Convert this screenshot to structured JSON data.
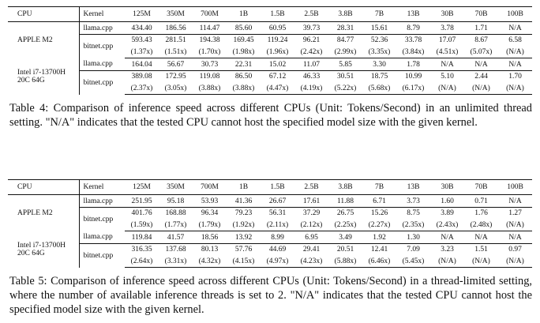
{
  "tables": [
    {
      "headers": [
        "CPU",
        "Kernel",
        "125M",
        "350M",
        "700M",
        "1B",
        "1.5B",
        "2.5B",
        "3.8B",
        "7B",
        "13B",
        "30B",
        "70B",
        "100B"
      ],
      "cpus": [
        {
          "name_lines": [
            "APPLE M2"
          ],
          "llama": [
            "434.40",
            "186.56",
            "114.47",
            "85.60",
            "60.95",
            "39.73",
            "28.31",
            "15.61",
            "8.79",
            "3.78",
            "1.71",
            "N/A"
          ],
          "bitnet": [
            "593.43",
            "281.51",
            "194.38",
            "169.45",
            "119.24",
            "96.21",
            "84.77",
            "52.36",
            "33.78",
            "17.07",
            "8.67",
            "6.58"
          ],
          "speedup": [
            "(1.37x)",
            "(1.51x)",
            "(1.70x)",
            "(1.98x)",
            "(1.96x)",
            "(2.42x)",
            "(2.99x)",
            "(3.35x)",
            "(3.84x)",
            "(4.51x)",
            "(5.07x)",
            "(N/A)"
          ]
        },
        {
          "name_lines": [
            "Intel i7-13700H",
            "20C 64G"
          ],
          "llama": [
            "164.04",
            "56.67",
            "30.73",
            "22.31",
            "15.02",
            "11.07",
            "5.85",
            "3.30",
            "1.78",
            "N/A",
            "N/A",
            "N/A"
          ],
          "bitnet": [
            "389.08",
            "172.95",
            "119.08",
            "86.50",
            "67.12",
            "46.33",
            "30.51",
            "18.75",
            "10.99",
            "5.10",
            "2.44",
            "1.70"
          ],
          "speedup": [
            "(2.37x)",
            "(3.05x)",
            "(3.88x)",
            "(3.88x)",
            "(4.47x)",
            "(4.19x)",
            "(5.22x)",
            "(5.68x)",
            "(6.17x)",
            "(N/A)",
            "(N/A)",
            "(N/A)"
          ]
        }
      ],
      "caption": "Table 4: Comparison of inference speed across different CPUs (Unit: Tokens/Second) in an unlimited thread setting. \"N/A\" indicates that the tested CPU cannot host the specified model size with the given kernel."
    },
    {
      "headers": [
        "CPU",
        "Kernel",
        "125M",
        "350M",
        "700M",
        "1B",
        "1.5B",
        "2.5B",
        "3.8B",
        "7B",
        "13B",
        "30B",
        "70B",
        "100B"
      ],
      "cpus": [
        {
          "name_lines": [
            "APPLE M2"
          ],
          "llama": [
            "251.95",
            "95.18",
            "53.93",
            "41.36",
            "26.67",
            "17.61",
            "11.88",
            "6.71",
            "3.73",
            "1.60",
            "0.71",
            "N/A"
          ],
          "bitnet": [
            "401.76",
            "168.88",
            "96.34",
            "79.23",
            "56.31",
            "37.29",
            "26.75",
            "15.26",
            "8.75",
            "3.89",
            "1.76",
            "1.27"
          ],
          "speedup": [
            "(1.59x)",
            "(1.77x)",
            "(1.79x)",
            "(1.92x)",
            "(2.11x)",
            "(2.12x)",
            "(2.25x)",
            "(2.27x)",
            "(2.35x)",
            "(2.43x)",
            "(2.48x)",
            "(N/A)"
          ]
        },
        {
          "name_lines": [
            "Intel i7-13700H",
            "20C 64G"
          ],
          "llama": [
            "119.84",
            "41.57",
            "18.56",
            "13.92",
            "8.99",
            "6.95",
            "3.49",
            "1.92",
            "1.30",
            "N/A",
            "N/A",
            "N/A"
          ],
          "bitnet": [
            "316.35",
            "137.68",
            "80.13",
            "57.76",
            "44.69",
            "29.41",
            "20.51",
            "12.41",
            "7.09",
            "3.23",
            "1.51",
            "0.97"
          ],
          "speedup": [
            "(2.64x)",
            "(3.31x)",
            "(4.32x)",
            "(4.15x)",
            "(4.97x)",
            "(4.23x)",
            "(5.88x)",
            "(6.46x)",
            "(5.45x)",
            "(N/A)",
            "(N/A)",
            "(N/A)"
          ]
        }
      ],
      "caption": "Table 5: Comparison of inference speed across different CPUs (Unit: Tokens/Second) in a thread-limited setting, where the number of available inference threads is set to 2. \"N/A\" indicates that the tested CPU cannot host the specified model size with the given kernel."
    }
  ],
  "kernels": {
    "llama": "llama.cpp",
    "bitnet": "bitnet.cpp"
  }
}
